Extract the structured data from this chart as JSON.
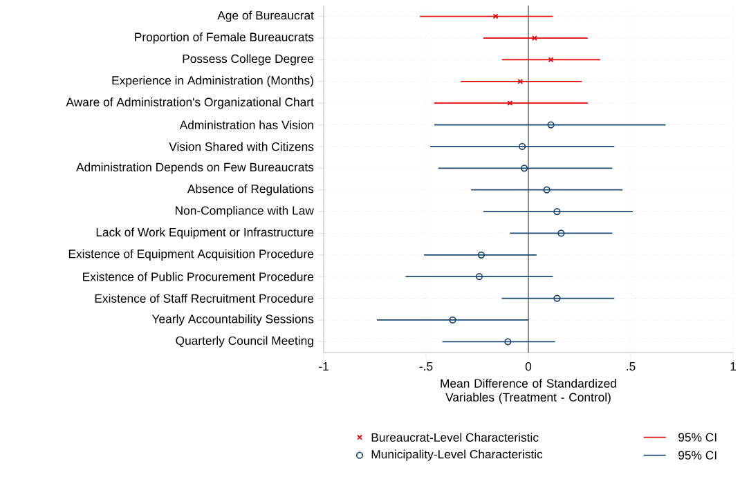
{
  "chart_data": {
    "type": "scatter",
    "orientation": "horizontal",
    "xlabel": "Mean Difference of Standardized Variables (Treatment - Control)",
    "categories": [
      "Age of Bureaucrat",
      "Proportion of Female Bureaucrats",
      "Possess College Degree",
      "Experience in Administration (Months)",
      "Aware of Administration's Organizational Chart",
      "Administration has Vision",
      "Vision Shared with Citizens",
      "Administration Depends on Few Bureaucrats",
      "Absence of Regulations",
      "Non-Compliance with Law",
      "Lack of Work Equipment or Infrastructure",
      "Existence of Equipment Acquisition Procedure",
      "Existence of Public Procurement Procedure",
      "Existence of Staff Recruitment Procedure",
      "Yearly Accountability Sessions",
      "Quarterly Council Meeting"
    ],
    "series": [
      {
        "name": "Bureaucrat-Level Characteristic",
        "color": "#e60000",
        "marker": "cross",
        "values": [
          -0.16,
          0.03,
          0.11,
          -0.04,
          -0.09,
          null,
          null,
          null,
          null,
          null,
          null,
          null,
          null,
          null,
          null,
          null
        ],
        "errors": [
          [
            -0.53,
            0.12
          ],
          [
            -0.22,
            0.29
          ],
          [
            -0.13,
            0.35
          ],
          [
            -0.33,
            0.26
          ],
          [
            -0.46,
            0.29
          ],
          null,
          null,
          null,
          null,
          null,
          null,
          null,
          null,
          null,
          null,
          null
        ]
      },
      {
        "name": "Municipality-Level Characteristic",
        "color": "#1a476f",
        "marker": "circle",
        "values": [
          null,
          null,
          null,
          null,
          null,
          0.11,
          -0.03,
          -0.02,
          0.09,
          0.14,
          0.16,
          -0.23,
          -0.24,
          0.14,
          -0.37,
          -0.1
        ],
        "errors": [
          null,
          null,
          null,
          null,
          null,
          [
            -0.46,
            0.67
          ],
          [
            -0.48,
            0.42
          ],
          [
            -0.44,
            0.41
          ],
          [
            -0.28,
            0.46
          ],
          [
            -0.22,
            0.51
          ],
          [
            -0.09,
            0.41
          ],
          [
            -0.51,
            0.04
          ],
          [
            -0.6,
            0.12
          ],
          [
            -0.13,
            0.42
          ],
          [
            -0.74,
            0.0
          ],
          [
            -0.42,
            0.13
          ]
        ]
      }
    ],
    "annotations": [
      "95% CI",
      "95% CI"
    ],
    "xlim": [
      -1,
      1
    ],
    "xticks": [
      {
        "value": -1,
        "label": "-1"
      },
      {
        "value": -0.5,
        "label": "-.5"
      },
      {
        "value": 0,
        "label": "0"
      },
      {
        "value": 0.5,
        "label": ".5"
      },
      {
        "value": 1,
        "label": "1"
      }
    ],
    "ref_lines": [
      {
        "axis": "x",
        "value": 0,
        "color": "#555555"
      }
    ],
    "grid": true,
    "legend": "bottom"
  }
}
